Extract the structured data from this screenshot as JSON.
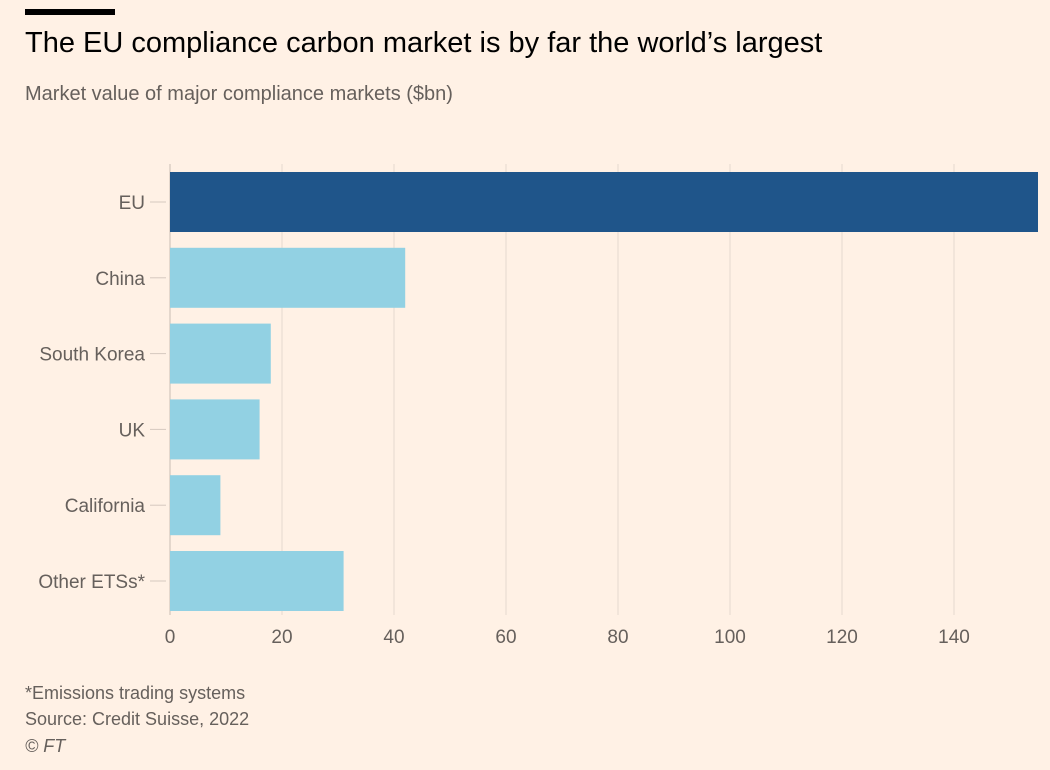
{
  "header": {
    "title": "The EU compliance carbon market is by far the world’s largest",
    "subtitle": "Market value of major compliance markets ($bn)"
  },
  "footer": {
    "note": "*Emissions trading systems",
    "source": "Source: Credit Suisse, 2022",
    "credit": "© FT"
  },
  "chart_data": {
    "type": "bar",
    "orientation": "horizontal",
    "title": "The EU compliance carbon market is by far the world’s largest",
    "subtitle": "Market value of major compliance markets ($bn)",
    "xlabel": "",
    "ylabel": "",
    "categories": [
      "EU",
      "China",
      "South Korea",
      "UK",
      "California",
      "Other ETSs*"
    ],
    "values": [
      155,
      42,
      18,
      16,
      9,
      31
    ],
    "highlight": "EU",
    "colors": {
      "highlight": "#1f558a",
      "default": "#92d1e3",
      "grid": "#e6d9ce",
      "axis_text": "#66605c"
    },
    "xlim": [
      0,
      155
    ],
    "xticks": [
      0,
      20,
      40,
      60,
      80,
      100,
      120,
      140
    ],
    "grid": true
  }
}
